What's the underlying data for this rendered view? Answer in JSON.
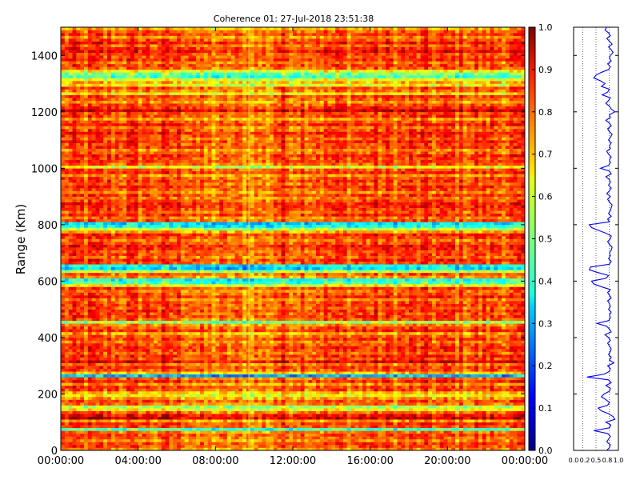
{
  "chart_data": [
    {
      "type": "heatmap",
      "title": "Coherence 01: 27-Jul-2018 23:51:38",
      "xlabel": "",
      "ylabel": "Range (Km)",
      "x_tick_labels": [
        "00:00:00",
        "04:00:00",
        "08:00:00",
        "12:00:00",
        "16:00:00",
        "20:00:00",
        "00:00:00"
      ],
      "x_range_hours": [
        0,
        24
      ],
      "y_ticks": [
        0,
        200,
        400,
        600,
        800,
        1000,
        1200,
        1400
      ],
      "ylim": [
        0,
        1500
      ],
      "colormap": "jet",
      "colorbar": {
        "ticks": [
          "0.0",
          "0.1",
          "0.2",
          "0.3",
          "0.4",
          "0.5",
          "0.6",
          "0.7",
          "0.8",
          "0.9",
          "1.0"
        ],
        "range": [
          0,
          1
        ]
      },
      "range_profile_km": [
        [
          0,
          0.74
        ],
        [
          10,
          0.8
        ],
        [
          20,
          0.82
        ],
        [
          30,
          0.74
        ],
        [
          40,
          0.78
        ],
        [
          50,
          0.82
        ],
        [
          60,
          0.76
        ],
        [
          70,
          0.45
        ],
        [
          80,
          0.8
        ],
        [
          90,
          0.83
        ],
        [
          100,
          0.72
        ],
        [
          110,
          0.92
        ],
        [
          120,
          0.88
        ],
        [
          130,
          0.78
        ],
        [
          140,
          0.62
        ],
        [
          150,
          0.55
        ],
        [
          160,
          0.76
        ],
        [
          170,
          0.8
        ],
        [
          180,
          0.72
        ],
        [
          190,
          0.62
        ],
        [
          200,
          0.68
        ],
        [
          210,
          0.8
        ],
        [
          220,
          0.82
        ],
        [
          230,
          0.72
        ],
        [
          240,
          0.84
        ],
        [
          250,
          0.78
        ],
        [
          260,
          0.3
        ],
        [
          270,
          0.68
        ],
        [
          280,
          0.8
        ],
        [
          290,
          0.82
        ],
        [
          300,
          0.76
        ],
        [
          310,
          0.9
        ],
        [
          320,
          0.8
        ],
        [
          330,
          0.84
        ],
        [
          340,
          0.78
        ],
        [
          350,
          0.82
        ],
        [
          360,
          0.84
        ],
        [
          370,
          0.8
        ],
        [
          380,
          0.76
        ],
        [
          390,
          0.82
        ],
        [
          400,
          0.78
        ],
        [
          410,
          0.7
        ],
        [
          420,
          0.84
        ],
        [
          430,
          0.8
        ],
        [
          440,
          0.74
        ],
        [
          450,
          0.52
        ],
        [
          460,
          0.78
        ],
        [
          470,
          0.82
        ],
        [
          480,
          0.8
        ],
        [
          490,
          0.84
        ],
        [
          500,
          0.78
        ],
        [
          510,
          0.82
        ],
        [
          520,
          0.8
        ],
        [
          530,
          0.76
        ],
        [
          540,
          0.84
        ],
        [
          550,
          0.8
        ],
        [
          560,
          0.76
        ],
        [
          570,
          0.82
        ],
        [
          580,
          0.62
        ],
        [
          590,
          0.45
        ],
        [
          600,
          0.4
        ],
        [
          610,
          0.72
        ],
        [
          620,
          0.78
        ],
        [
          630,
          0.55
        ],
        [
          640,
          0.35
        ],
        [
          650,
          0.38
        ],
        [
          660,
          0.8
        ],
        [
          670,
          0.84
        ],
        [
          680,
          0.78
        ],
        [
          690,
          0.82
        ],
        [
          700,
          0.8
        ],
        [
          710,
          0.84
        ],
        [
          720,
          0.86
        ],
        [
          730,
          0.8
        ],
        [
          740,
          0.76
        ],
        [
          750,
          0.82
        ],
        [
          760,
          0.84
        ],
        [
          770,
          0.72
        ],
        [
          780,
          0.55
        ],
        [
          790,
          0.4
        ],
        [
          800,
          0.35
        ],
        [
          810,
          0.8
        ],
        [
          820,
          0.76
        ],
        [
          830,
          0.84
        ],
        [
          840,
          0.78
        ],
        [
          850,
          0.82
        ],
        [
          860,
          0.84
        ],
        [
          870,
          0.86
        ],
        [
          880,
          0.8
        ],
        [
          890,
          0.76
        ],
        [
          900,
          0.82
        ],
        [
          910,
          0.74
        ],
        [
          920,
          0.8
        ],
        [
          930,
          0.84
        ],
        [
          940,
          0.78
        ],
        [
          950,
          0.82
        ],
        [
          960,
          0.8
        ],
        [
          970,
          0.72
        ],
        [
          980,
          0.84
        ],
        [
          990,
          0.8
        ],
        [
          1000,
          0.6
        ],
        [
          1010,
          0.78
        ],
        [
          1020,
          0.82
        ],
        [
          1030,
          0.8
        ],
        [
          1040,
          0.84
        ],
        [
          1050,
          0.78
        ],
        [
          1060,
          0.74
        ],
        [
          1070,
          0.82
        ],
        [
          1080,
          0.8
        ],
        [
          1090,
          0.84
        ],
        [
          1100,
          0.78
        ],
        [
          1110,
          0.82
        ],
        [
          1120,
          0.86
        ],
        [
          1130,
          0.8
        ],
        [
          1140,
          0.76
        ],
        [
          1150,
          0.84
        ],
        [
          1160,
          0.8
        ],
        [
          1170,
          0.72
        ],
        [
          1180,
          0.82
        ],
        [
          1190,
          0.8
        ],
        [
          1200,
          0.92
        ],
        [
          1210,
          0.84
        ],
        [
          1220,
          0.8
        ],
        [
          1230,
          0.72
        ],
        [
          1240,
          0.78
        ],
        [
          1250,
          0.82
        ],
        [
          1260,
          0.64
        ],
        [
          1270,
          0.76
        ],
        [
          1280,
          0.8
        ],
        [
          1290,
          0.62
        ],
        [
          1300,
          0.7
        ],
        [
          1310,
          0.6
        ],
        [
          1320,
          0.45
        ],
        [
          1330,
          0.5
        ],
        [
          1340,
          0.62
        ],
        [
          1350,
          0.78
        ],
        [
          1360,
          0.82
        ],
        [
          1370,
          0.76
        ],
        [
          1380,
          0.84
        ],
        [
          1390,
          0.8
        ],
        [
          1400,
          0.82
        ],
        [
          1410,
          0.88
        ],
        [
          1420,
          0.84
        ],
        [
          1430,
          0.78
        ],
        [
          1440,
          0.86
        ],
        [
          1450,
          0.8
        ],
        [
          1460,
          0.74
        ],
        [
          1470,
          0.82
        ],
        [
          1480,
          0.78
        ],
        [
          1490,
          0.7
        ],
        [
          1500,
          0.74
        ]
      ],
      "profile_xlim": [
        0,
        1
      ],
      "profile_x_tick_labels": [
        "0.0",
        "0.2",
        "0.5",
        "0.8",
        "1.0"
      ],
      "profile_color": "#0000ff"
    }
  ]
}
